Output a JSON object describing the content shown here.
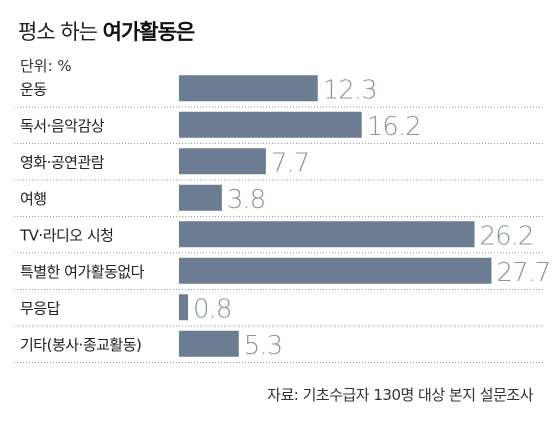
{
  "header": {
    "title_light": "평소 하는",
    "title_bold": "여가활동은",
    "unit": "단위: %"
  },
  "source": "자료: 기초수급자 130명 대상 본지 설문조사",
  "colors": {
    "bar": "#6b7c93",
    "value_text": "#8a93a3",
    "separator": "#9a9a9a"
  },
  "chart_data": {
    "type": "bar",
    "orientation": "horizontal",
    "categories": [
      "운동",
      "독서·음악감상",
      "영화·공연관람",
      "여행",
      "TV·라디오 시청",
      "특별한 여가활동없다",
      "무응답",
      "기타(봉사·종교활동)"
    ],
    "values": [
      12.3,
      16.2,
      7.7,
      3.8,
      26.2,
      27.7,
      0.8,
      5.3
    ],
    "value_labels": [
      "12.3",
      "16.2",
      "7.7",
      "3.8",
      "26.2",
      "27.7",
      "0.8",
      "5.3"
    ],
    "title": "평소 하는 여가활동은",
    "unit": "단위: %"
  }
}
